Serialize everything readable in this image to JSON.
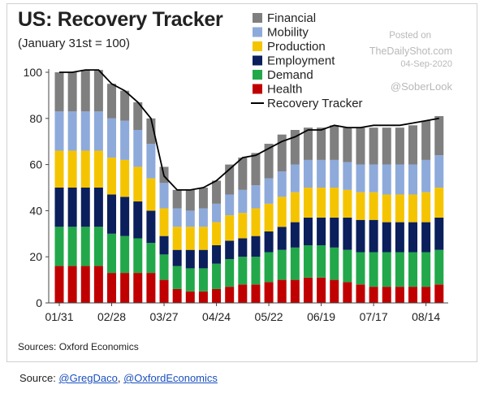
{
  "chart_data": {
    "type": "bar",
    "stacked": true,
    "title": "US: Recovery Tracker",
    "subtitle": "(January 31st = 100)",
    "xlabel": "",
    "ylabel": "",
    "ylim": [
      0,
      100
    ],
    "yticks": [
      "0",
      "20",
      "40",
      "60",
      "80",
      "100"
    ],
    "xtick_labels": [
      "01/31",
      "02/28",
      "03/27",
      "04/24",
      "05/22",
      "06/19",
      "07/17",
      "08/14"
    ],
    "xtick_every": 4,
    "grid": false,
    "legend_position": "top-right",
    "categories": [
      "01/31",
      "02/07",
      "02/14",
      "02/21",
      "02/28",
      "03/06",
      "03/13",
      "03/20",
      "03/27",
      "04/03",
      "04/10",
      "04/17",
      "04/24",
      "05/01",
      "05/08",
      "05/15",
      "05/22",
      "05/29",
      "06/05",
      "06/12",
      "06/19",
      "06/26",
      "07/03",
      "07/10",
      "07/17",
      "07/24",
      "07/31",
      "08/07",
      "08/14",
      "08/21"
    ],
    "series": [
      {
        "name": "Health",
        "color": "#c00000",
        "values": [
          16,
          16,
          16,
          16,
          13,
          13,
          13,
          13,
          10,
          6,
          5,
          5,
          6,
          7,
          8,
          8,
          9,
          10,
          10,
          11,
          11,
          10,
          9,
          8,
          7,
          7,
          7,
          7,
          7,
          8
        ]
      },
      {
        "name": "Demand",
        "color": "#22a84a",
        "values": [
          17,
          17,
          17,
          17,
          17,
          16,
          15,
          13,
          11,
          10,
          10,
          10,
          11,
          12,
          12,
          12,
          13,
          13,
          14,
          14,
          14,
          14,
          14,
          14,
          15,
          15,
          15,
          15,
          15,
          15
        ]
      },
      {
        "name": "Employment",
        "color": "#0b1f5c",
        "values": [
          17,
          17,
          17,
          17,
          17,
          17,
          16,
          14,
          8,
          7,
          8,
          8,
          8,
          8,
          8,
          9,
          9,
          10,
          11,
          12,
          12,
          13,
          14,
          14,
          14,
          13,
          13,
          13,
          13,
          14
        ]
      },
      {
        "name": "Production",
        "color": "#f5c400",
        "values": [
          16,
          16,
          16,
          16,
          16,
          16,
          15,
          14,
          12,
          10,
          10,
          10,
          10,
          11,
          11,
          12,
          12,
          13,
          13,
          13,
          13,
          13,
          12,
          12,
          12,
          12,
          12,
          12,
          13,
          13
        ]
      },
      {
        "name": "Mobility",
        "color": "#8eaadb",
        "values": [
          17,
          17,
          17,
          17,
          17,
          17,
          16,
          15,
          11,
          8,
          7,
          8,
          8,
          9,
          10,
          10,
          11,
          11,
          12,
          12,
          12,
          12,
          12,
          12,
          12,
          13,
          13,
          13,
          14,
          14
        ]
      },
      {
        "name": "Financial",
        "color": "#7f7f7f",
        "values": [
          17,
          17,
          18,
          18,
          15,
          13,
          12,
          11,
          7,
          8,
          9,
          9,
          10,
          13,
          14,
          14,
          15,
          16,
          15,
          14,
          14,
          15,
          15,
          16,
          16,
          16,
          16,
          17,
          17,
          17
        ]
      }
    ],
    "line": {
      "name": "Recovery Tracker",
      "color": "#000000",
      "values": [
        100,
        100,
        101,
        101,
        95,
        92,
        87,
        80,
        55,
        49,
        49,
        50,
        53,
        58,
        63,
        64,
        67,
        70,
        72,
        75,
        75,
        77,
        76,
        76,
        77,
        77,
        77,
        78,
        79,
        80
      ]
    }
  },
  "legend": {
    "items": [
      {
        "label": "Financial",
        "color": "#7f7f7f",
        "kind": "swatch"
      },
      {
        "label": "Mobility",
        "color": "#8eaadb",
        "kind": "swatch"
      },
      {
        "label": "Production",
        "color": "#f5c400",
        "kind": "swatch"
      },
      {
        "label": "Employment",
        "color": "#0b1f5c",
        "kind": "swatch"
      },
      {
        "label": "Demand",
        "color": "#22a84a",
        "kind": "swatch"
      },
      {
        "label": "Health",
        "color": "#c00000",
        "kind": "swatch"
      },
      {
        "label": "Recovery Tracker",
        "color": "#000000",
        "kind": "line"
      }
    ]
  },
  "watermark": {
    "line1": "Posted on",
    "line2": "TheDailyShot.com",
    "line3": "04-Sep-2020",
    "line4": "@SoberLook"
  },
  "source_note": "Sources: Oxford Economics",
  "footer": {
    "prefix": "Source: ",
    "link1": "@GregDaco",
    "separator": ", ",
    "link2": "@OxfordEconomics"
  }
}
